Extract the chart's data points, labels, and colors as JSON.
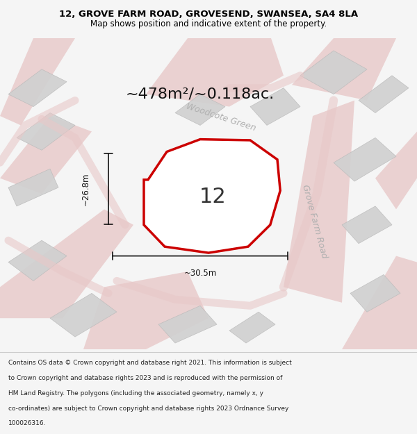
{
  "title_line1": "12, GROVE FARM ROAD, GROVESEND, SWANSEA, SA4 8LA",
  "title_line2": "Map shows position and indicative extent of the property.",
  "area_text": "~478m²/~0.118ac.",
  "label_number": "12",
  "label_width": "~30.5m",
  "label_height": "~26.8m",
  "road_label1": "Woodcote Green",
  "road_label2": "Grove Farm Road",
  "footer_lines": [
    "Contains OS data © Crown copyright and database right 2021. This information is subject",
    "to Crown copyright and database rights 2023 and is reproduced with the permission of",
    "HM Land Registry. The polygons (including the associated geometry, namely x, y",
    "co-ordinates) are subject to Crown copyright and database rights 2023 Ordnance Survey",
    "100026316."
  ],
  "bg_color": "#f5f5f5",
  "map_bg": "#ffffff",
  "property_color": "#cc0000",
  "property_fill": "#ffffff",
  "road_color": "#e8c8c8",
  "building_color": "#d0d0d0",
  "dimension_color": "#111111",
  "text_color": "#333333",
  "road_text_color": "#b0b0b0",
  "title_bg": "#ffffff",
  "footer_bg": "#ffffff"
}
